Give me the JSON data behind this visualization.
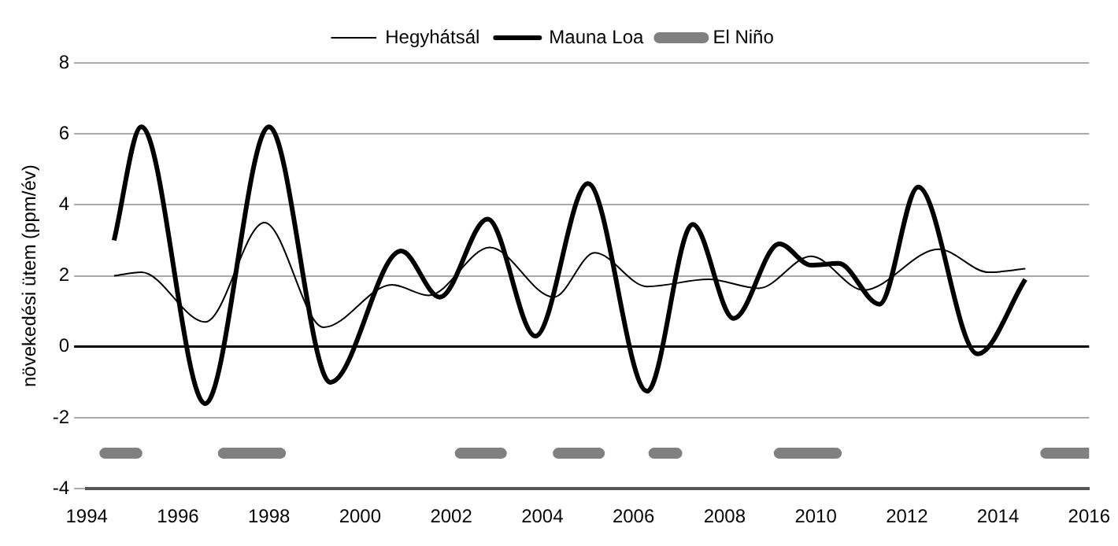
{
  "chart_data": {
    "type": "line",
    "ylabel": "növekedési ütem (ppm/év)",
    "xlim": [
      1994,
      2016
    ],
    "xticks": [
      1994,
      1996,
      1998,
      2000,
      2002,
      2004,
      2006,
      2008,
      2010,
      2012,
      2014,
      2016
    ],
    "ylim": [
      -4,
      8
    ],
    "yticks": [
      -4,
      -2,
      0,
      2,
      4,
      6,
      8
    ],
    "grid": "y",
    "legend": "top",
    "marker": "none",
    "series": [
      {
        "name": "Hegyhátsál",
        "color": "#000000",
        "x": [
          1994.6,
          1995.2,
          1996.6,
          1997.9,
          1999.2,
          2000.7,
          2001.5,
          2002.85,
          2004.25,
          2005.15,
          2006.3,
          2007.65,
          2008.75,
          2009.9,
          2011.05,
          2012.7,
          2013.8,
          2014.6
        ],
        "values": [
          2.0,
          2.1,
          0.7,
          3.5,
          0.55,
          1.75,
          1.45,
          2.8,
          1.4,
          2.65,
          1.7,
          1.9,
          1.65,
          2.55,
          1.6,
          2.75,
          2.1,
          2.2
        ]
      },
      {
        "name": "Mauna Loa",
        "color": "#000000",
        "x": [
          1994.6,
          1995.2,
          1996.6,
          1998.0,
          1999.35,
          2000.9,
          2001.75,
          2002.8,
          2003.85,
          2005.0,
          2006.3,
          2007.3,
          2008.2,
          2009.2,
          2009.9,
          2010.5,
          2011.4,
          2012.25,
          2013.55,
          2014.6
        ],
        "values": [
          3.0,
          6.2,
          -1.6,
          6.2,
          -1.0,
          2.7,
          1.4,
          3.6,
          0.3,
          4.6,
          -1.25,
          3.45,
          0.8,
          2.9,
          2.3,
          2.35,
          1.2,
          4.5,
          -0.2,
          1.9
        ]
      },
      {
        "name": "El Niño",
        "color": "#808080",
        "x": [
          1994.4,
          1995.1,
          1996,
          1997.0,
          1998.25,
          2000,
          2002.2,
          2003.1,
          2004,
          2004.35,
          2005.25,
          2006,
          2006.45,
          2006.95,
          2008,
          2009.2,
          2010.45,
          2012,
          2015.05,
          2016.0
        ],
        "values": [
          -3,
          -3,
          null,
          -3,
          -3,
          null,
          -3,
          -3,
          null,
          -3,
          -3,
          null,
          -3,
          -3,
          null,
          -3,
          -3,
          null,
          -3,
          -3
        ]
      }
    ]
  }
}
